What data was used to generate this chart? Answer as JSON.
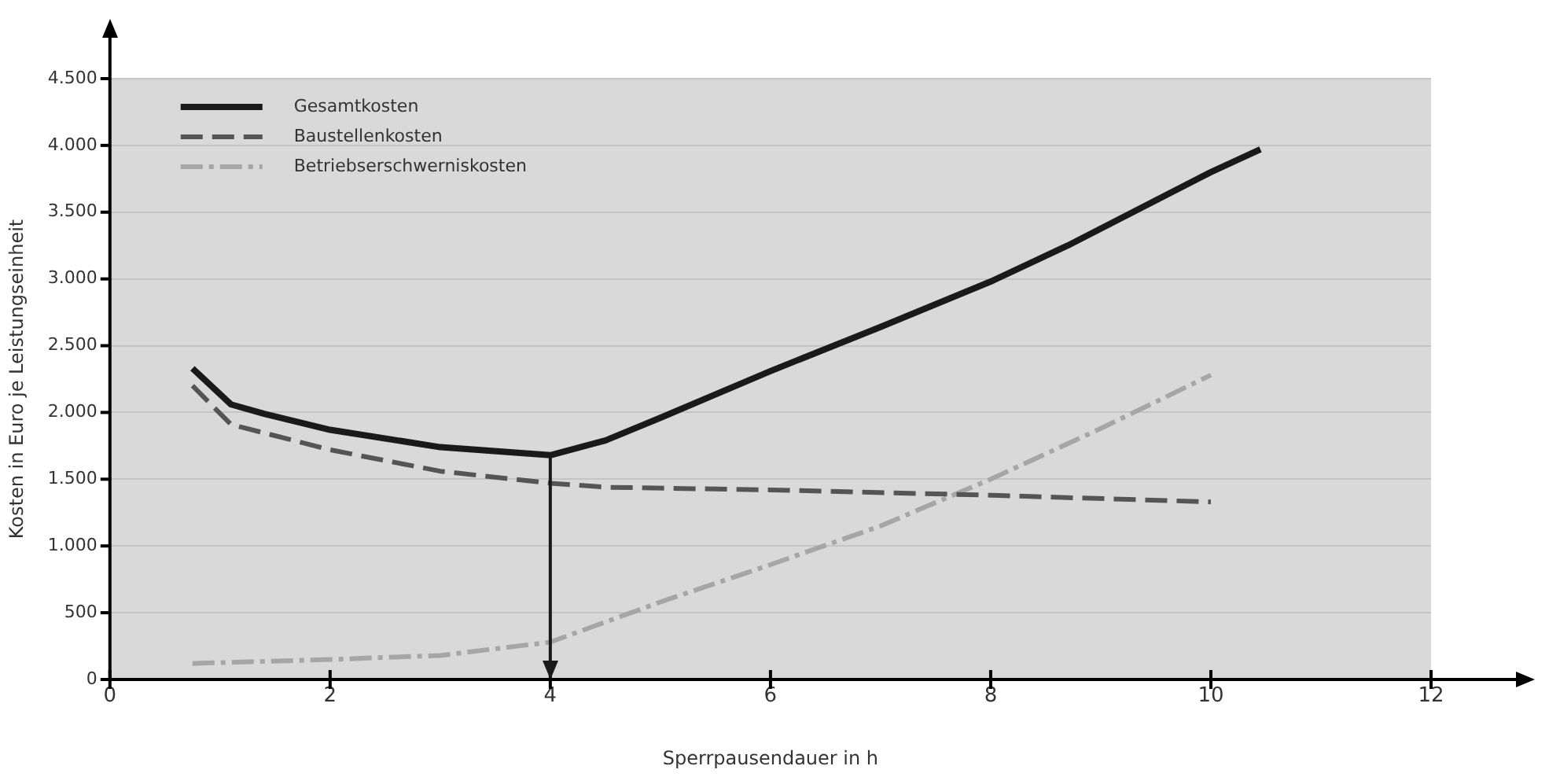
{
  "chart_data": {
    "type": "line",
    "xlabel": "Sperrpausendauer in h",
    "ylabel": "Kosten in Euro je Leistungseinheit",
    "xlim": [
      0,
      12
    ],
    "xticks": [
      0,
      2,
      4,
      6,
      8,
      10,
      12
    ],
    "ylim": [
      0,
      4500
    ],
    "yticks": [
      0,
      500,
      {
        "value": 1000,
        "label": "1.000"
      },
      {
        "value": 1500,
        "label": "1.500"
      },
      {
        "value": 2000,
        "label": "2.000"
      },
      {
        "value": 2500,
        "label": "2.500"
      },
      {
        "value": 3000,
        "label": "3.000"
      },
      {
        "value": 3500,
        "label": "3.500"
      },
      {
        "value": 4000,
        "label": "4.000"
      },
      {
        "value": 4500,
        "label": "4.500"
      }
    ],
    "grid": "y",
    "legend": "top left",
    "marker": "none",
    "series": [
      {
        "name": "Gesamtkosten",
        "color": "#1a1a1a",
        "line_style": "solid",
        "x": [
          0.75,
          1.1,
          1.4,
          2,
          3,
          4,
          4.5,
          5,
          6,
          7,
          8,
          8.7,
          10,
          10.45
        ],
        "values": [
          2330,
          2060,
          1990,
          1870,
          1740,
          1680,
          1790,
          1960,
          2310,
          2640,
          2980,
          3250,
          3800,
          3970
        ]
      },
      {
        "name": "Baustellenkosten",
        "color": "#555555",
        "line_style": "dashed",
        "x": [
          0.75,
          1.1,
          2,
          3,
          4,
          4.5,
          6,
          8,
          10
        ],
        "values": [
          2200,
          1910,
          1720,
          1560,
          1470,
          1440,
          1420,
          1380,
          1330
        ]
      },
      {
        "name": "Betriebserschwerniskosten",
        "color": "#a6a6a6",
        "line_style": "dotted",
        "x": [
          0.75,
          2,
          3,
          4,
          5,
          6,
          7,
          8,
          9,
          10
        ],
        "values": [
          120,
          150,
          180,
          280,
          580,
          860,
          1150,
          1500,
          1880,
          2280
        ]
      }
    ],
    "ref_lines": [
      {
        "axis": "x",
        "value": 4,
        "color": "#1a1a1a"
      }
    ]
  }
}
